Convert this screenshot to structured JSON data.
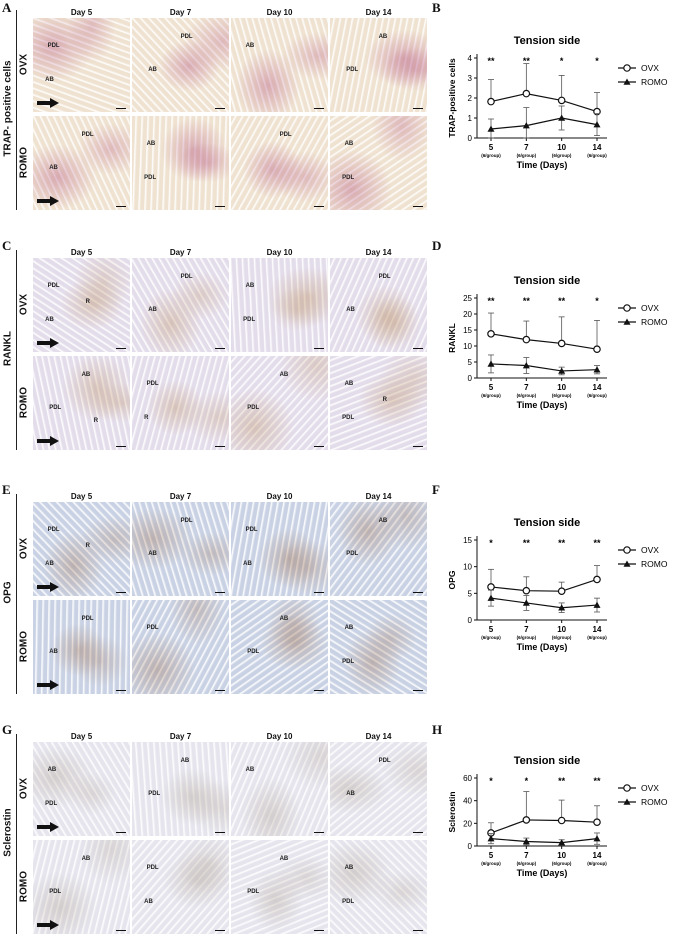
{
  "image_panels": [
    {
      "letter": "A",
      "stain_label": "TRAP- positive cells",
      "days": [
        "Day 5",
        "Day 7",
        "Day 10",
        "Day 14"
      ],
      "rows": [
        {
          "label": "OVX",
          "tiles": [
            [
              "PDL",
              "AB"
            ],
            [
              "PDL",
              "AB"
            ],
            [
              "AB"
            ],
            [
              "AB",
              "PDL"
            ]
          ]
        },
        {
          "label": "ROMO",
          "tiles": [
            [
              "PDL",
              "AB"
            ],
            [
              "AB",
              "PDL"
            ],
            [
              "PDL"
            ],
            [
              "AB",
              "PDL"
            ]
          ]
        }
      ],
      "bg": "#efe2d0",
      "tint": "#a83a6e"
    },
    {
      "letter": "C",
      "stain_label": "RANKL",
      "days": [
        "Day 5",
        "Day 7",
        "Day 10",
        "Day 14"
      ],
      "rows": [
        {
          "label": "OVX",
          "tiles": [
            [
              "PDL",
              "AB",
              "R"
            ],
            [
              "PDL",
              "AB"
            ],
            [
              "AB",
              "PDL"
            ],
            [
              "PDL",
              "AB"
            ]
          ]
        },
        {
          "label": "ROMO",
          "tiles": [
            [
              "AB",
              "PDL",
              "R"
            ],
            [
              "PDL",
              "R"
            ],
            [
              "AB",
              "PDL"
            ],
            [
              "AB",
              "PDL",
              "R"
            ]
          ]
        }
      ],
      "bg": "#e3dcea",
      "tint": "#b88a5a"
    },
    {
      "letter": "E",
      "stain_label": "OPG",
      "days": [
        "Day 5",
        "Day 7",
        "Day 10",
        "Day 14"
      ],
      "rows": [
        {
          "label": "OVX",
          "tiles": [
            [
              "PDL",
              "AB",
              "R"
            ],
            [
              "PDL",
              "AB"
            ],
            [
              "PDL",
              "AB"
            ],
            [
              "AB",
              "PDL"
            ]
          ]
        },
        {
          "label": "ROMO",
          "tiles": [
            [
              "PDL",
              "AB"
            ],
            [
              "PDL"
            ],
            [
              "AB",
              "PDL"
            ],
            [
              "AB",
              "PDL"
            ]
          ]
        }
      ],
      "bg": "#c9d2e4",
      "tint": "#9a6a4a"
    },
    {
      "letter": "G",
      "stain_label": "Sclerostin",
      "days": [
        "Day 5",
        "Day 7",
        "Day 10",
        "Day 14"
      ],
      "rows": [
        {
          "label": "OVX",
          "tiles": [
            [
              "AB",
              "PDL"
            ],
            [
              "AB",
              "PDL"
            ],
            [
              "AB"
            ],
            [
              "PDL",
              "AB"
            ]
          ]
        },
        {
          "label": "ROMO",
          "tiles": [
            [
              "AB",
              "PDL"
            ],
            [
              "PDL",
              "AB"
            ],
            [
              "AB",
              "PDL"
            ],
            [
              "AB",
              "PDL"
            ]
          ]
        }
      ],
      "bg": "#e6e5ee",
      "tint": "#a89a8a"
    }
  ],
  "chart_data": [
    {
      "letter": "B",
      "type": "line",
      "title": "Tension side",
      "xlabel": "Time (Days)",
      "ylabel": "TRAP-positive cells",
      "categories": [
        "5",
        "7",
        "10",
        "14"
      ],
      "category_sub": "(6/group)",
      "yticks": [
        "0",
        "1",
        "2",
        "3",
        "4"
      ],
      "ylim": [
        0,
        4
      ],
      "significance": [
        "**",
        "**",
        "*",
        "*"
      ],
      "legend_position": "top-right",
      "series": [
        {
          "name": "OVX",
          "marker": "open-circle",
          "values": [
            1.82,
            2.22,
            1.88,
            1.32
          ],
          "err": [
            1.1,
            1.5,
            1.25,
            0.95
          ]
        },
        {
          "name": "ROMO",
          "marker": "filled-triangle",
          "values": [
            0.45,
            0.62,
            1.0,
            0.67
          ],
          "err": [
            0.5,
            0.9,
            0.6,
            0.55
          ]
        }
      ]
    },
    {
      "letter": "D",
      "type": "line",
      "title": "Tension side",
      "xlabel": "Time (Days)",
      "ylabel": "RANKL",
      "categories": [
        "5",
        "7",
        "10",
        "14"
      ],
      "category_sub": "(6/group)",
      "yticks": [
        "0",
        "5",
        "10",
        "15",
        "20",
        "25"
      ],
      "ylim": [
        0,
        25
      ],
      "significance": [
        "**",
        "**",
        "**",
        "*"
      ],
      "legend_position": "top-right",
      "series": [
        {
          "name": "OVX",
          "marker": "open-circle",
          "values": [
            13.8,
            12.0,
            10.8,
            9.0
          ],
          "err": [
            6.5,
            5.8,
            8.3,
            9.0
          ]
        },
        {
          "name": "ROMO",
          "marker": "filled-triangle",
          "values": [
            4.4,
            3.9,
            2.2,
            2.6
          ],
          "err": [
            2.8,
            2.5,
            1.2,
            1.3
          ]
        }
      ]
    },
    {
      "letter": "F",
      "type": "line",
      "title": "Tension side",
      "xlabel": "Time (Days)",
      "ylabel": "OPG",
      "categories": [
        "5",
        "7",
        "10",
        "14"
      ],
      "category_sub": "(6/group)",
      "yticks": [
        "0",
        "5",
        "10",
        "15"
      ],
      "ylim": [
        0,
        15
      ],
      "significance": [
        "*",
        "**",
        "**",
        "**"
      ],
      "legend_position": "top-right",
      "series": [
        {
          "name": "OVX",
          "marker": "open-circle",
          "values": [
            6.2,
            5.5,
            5.4,
            7.6
          ],
          "err": [
            3.3,
            2.6,
            1.7,
            2.6
          ]
        },
        {
          "name": "ROMO",
          "marker": "filled-triangle",
          "values": [
            4.1,
            3.2,
            2.3,
            2.8
          ],
          "err": [
            1.5,
            1.4,
            0.9,
            1.3
          ]
        }
      ]
    },
    {
      "letter": "H",
      "type": "line",
      "title": "Tension side",
      "xlabel": "Time (Days)",
      "ylabel": "Sclerostin",
      "categories": [
        "5",
        "7",
        "10",
        "14"
      ],
      "category_sub": "(6/group)",
      "yticks": [
        "0",
        "20",
        "40",
        "60"
      ],
      "ylim": [
        0,
        60
      ],
      "significance": [
        "*",
        "*",
        "**",
        "**"
      ],
      "legend_position": "top-right",
      "series": [
        {
          "name": "OVX",
          "marker": "open-circle",
          "values": [
            11.5,
            23.0,
            22.5,
            21.0
          ],
          "err": [
            9.0,
            25.0,
            18.0,
            14.5
          ]
        },
        {
          "name": "ROMO",
          "marker": "filled-triangle",
          "values": [
            6.5,
            4.0,
            3.0,
            6.5
          ],
          "err": [
            4.5,
            3.0,
            2.5,
            5.0
          ]
        }
      ]
    }
  ]
}
